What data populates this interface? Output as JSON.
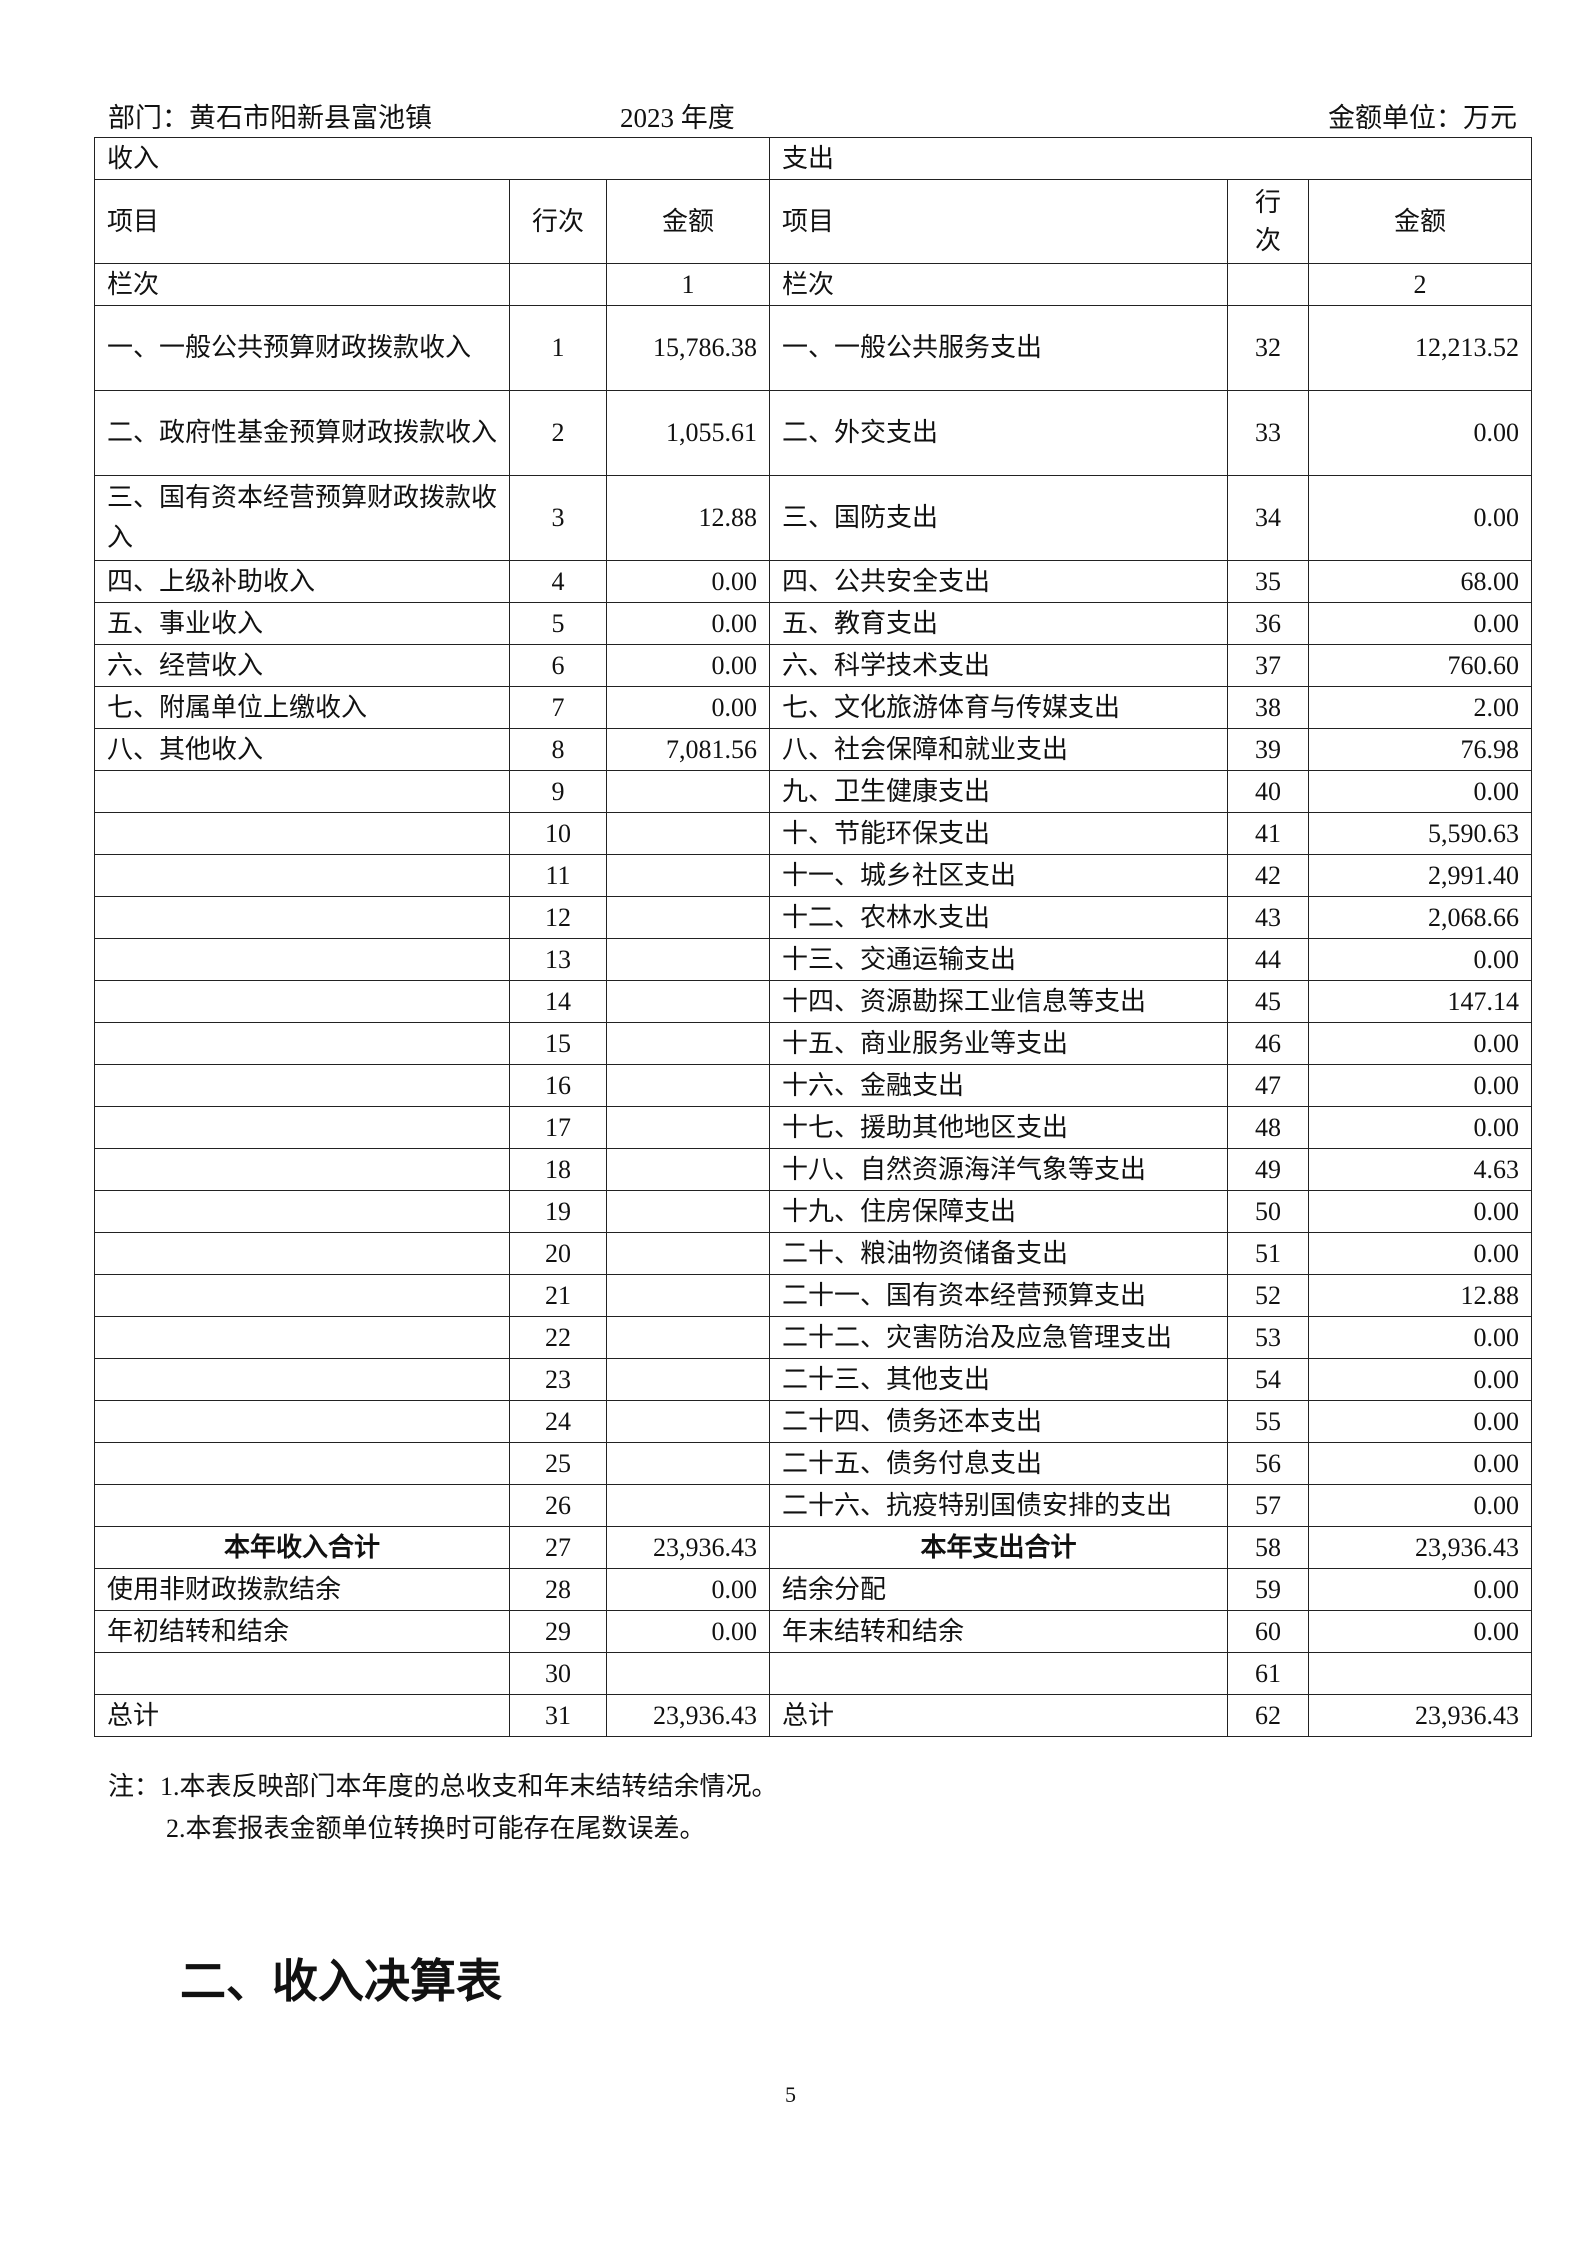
{
  "header": {
    "department": "部门：黄石市阳新县富池镇",
    "year": "2023 年度",
    "unit": "金额单位：万元"
  },
  "table": {
    "section_income": "收入",
    "section_expense": "支出",
    "col_item": "项目",
    "col_line": "行次",
    "col_line_v": "行\n次",
    "col_amount": "金额",
    "col_index_label": "栏次",
    "col_index_1": "1",
    "col_index_2": "2",
    "rows": [
      {
        "in_item": "一、一般公共预算财政拨款收入",
        "in_no": "1",
        "in_amt": "15,786.38",
        "ex_item": "一、一般公共服务支出",
        "ex_no": "32",
        "ex_amt": "12,213.52"
      },
      {
        "in_item": "二、政府性基金预算财政拨款收入",
        "in_no": "2",
        "in_amt": "1,055.61",
        "ex_item": "二、外交支出",
        "ex_no": "33",
        "ex_amt": "0.00"
      },
      {
        "in_item": "三、国有资本经营预算财政拨款收入",
        "in_no": "3",
        "in_amt": "12.88",
        "ex_item": "三、国防支出",
        "ex_no": "34",
        "ex_amt": "0.00"
      },
      {
        "in_item": "四、上级补助收入",
        "in_no": "4",
        "in_amt": "0.00",
        "ex_item": "四、公共安全支出",
        "ex_no": "35",
        "ex_amt": "68.00"
      },
      {
        "in_item": "五、事业收入",
        "in_no": "5",
        "in_amt": "0.00",
        "ex_item": "五、教育支出",
        "ex_no": "36",
        "ex_amt": "0.00"
      },
      {
        "in_item": "六、经营收入",
        "in_no": "6",
        "in_amt": "0.00",
        "ex_item": "六、科学技术支出",
        "ex_no": "37",
        "ex_amt": "760.60"
      },
      {
        "in_item": "七、附属单位上缴收入",
        "in_no": "7",
        "in_amt": "0.00",
        "ex_item": "七、文化旅游体育与传媒支出",
        "ex_no": "38",
        "ex_amt": "2.00"
      },
      {
        "in_item": "八、其他收入",
        "in_no": "8",
        "in_amt": "7,081.56",
        "ex_item": "八、社会保障和就业支出",
        "ex_no": "39",
        "ex_amt": "76.98"
      },
      {
        "in_item": "",
        "in_no": "9",
        "in_amt": "",
        "ex_item": "九、卫生健康支出",
        "ex_no": "40",
        "ex_amt": "0.00"
      },
      {
        "in_item": "",
        "in_no": "10",
        "in_amt": "",
        "ex_item": "十、节能环保支出",
        "ex_no": "41",
        "ex_amt": "5,590.63"
      },
      {
        "in_item": "",
        "in_no": "11",
        "in_amt": "",
        "ex_item": "十一、城乡社区支出",
        "ex_no": "42",
        "ex_amt": "2,991.40"
      },
      {
        "in_item": "",
        "in_no": "12",
        "in_amt": "",
        "ex_item": "十二、农林水支出",
        "ex_no": "43",
        "ex_amt": "2,068.66"
      },
      {
        "in_item": "",
        "in_no": "13",
        "in_amt": "",
        "ex_item": "十三、交通运输支出",
        "ex_no": "44",
        "ex_amt": "0.00"
      },
      {
        "in_item": "",
        "in_no": "14",
        "in_amt": "",
        "ex_item": "十四、资源勘探工业信息等支出",
        "ex_no": "45",
        "ex_amt": "147.14"
      },
      {
        "in_item": "",
        "in_no": "15",
        "in_amt": "",
        "ex_item": "十五、商业服务业等支出",
        "ex_no": "46",
        "ex_amt": "0.00"
      },
      {
        "in_item": "",
        "in_no": "16",
        "in_amt": "",
        "ex_item": "十六、金融支出",
        "ex_no": "47",
        "ex_amt": "0.00"
      },
      {
        "in_item": "",
        "in_no": "17",
        "in_amt": "",
        "ex_item": "十七、援助其他地区支出",
        "ex_no": "48",
        "ex_amt": "0.00"
      },
      {
        "in_item": "",
        "in_no": "18",
        "in_amt": "",
        "ex_item": "十八、自然资源海洋气象等支出",
        "ex_no": "49",
        "ex_amt": "4.63"
      },
      {
        "in_item": "",
        "in_no": "19",
        "in_amt": "",
        "ex_item": "十九、住房保障支出",
        "ex_no": "50",
        "ex_amt": "0.00"
      },
      {
        "in_item": "",
        "in_no": "20",
        "in_amt": "",
        "ex_item": "二十、粮油物资储备支出",
        "ex_no": "51",
        "ex_amt": "0.00"
      },
      {
        "in_item": "",
        "in_no": "21",
        "in_amt": "",
        "ex_item": "二十一、国有资本经营预算支出",
        "ex_no": "52",
        "ex_amt": "12.88"
      },
      {
        "in_item": "",
        "in_no": "22",
        "in_amt": "",
        "ex_item": "二十二、灾害防治及应急管理支出",
        "ex_no": "53",
        "ex_amt": "0.00"
      },
      {
        "in_item": "",
        "in_no": "23",
        "in_amt": "",
        "ex_item": "二十三、其他支出",
        "ex_no": "54",
        "ex_amt": "0.00"
      },
      {
        "in_item": "",
        "in_no": "24",
        "in_amt": "",
        "ex_item": "二十四、债务还本支出",
        "ex_no": "55",
        "ex_amt": "0.00"
      },
      {
        "in_item": "",
        "in_no": "25",
        "in_amt": "",
        "ex_item": "二十五、债务付息支出",
        "ex_no": "56",
        "ex_amt": "0.00"
      },
      {
        "in_item": "",
        "in_no": "26",
        "in_amt": "",
        "ex_item": "二十六、抗疫特别国债安排的支出",
        "ex_no": "57",
        "ex_amt": "0.00"
      },
      {
        "in_item": "本年收入合计",
        "in_no": "27",
        "in_amt": "23,936.43",
        "ex_item": "本年支出合计",
        "ex_no": "58",
        "ex_amt": "23,936.43"
      },
      {
        "in_item": "使用非财政拨款结余",
        "in_no": "28",
        "in_amt": "0.00",
        "ex_item": "结余分配",
        "ex_no": "59",
        "ex_amt": "0.00"
      },
      {
        "in_item": "年初结转和结余",
        "in_no": "29",
        "in_amt": "0.00",
        "ex_item": "年末结转和结余",
        "ex_no": "60",
        "ex_amt": "0.00"
      },
      {
        "in_item": "",
        "in_no": "30",
        "in_amt": "",
        "ex_item": "",
        "ex_no": "61",
        "ex_amt": ""
      },
      {
        "in_item": "总计",
        "in_no": "31",
        "in_amt": "23,936.43",
        "ex_item": "总计",
        "ex_no": "62",
        "ex_amt": "23,936.43"
      }
    ]
  },
  "notes": [
    "注：1.本表反映部门本年度的总收支和年末结转结余情况。",
    "2.本套报表金额单位转换时可能存在尾数误差。"
  ],
  "section_heading": "二、收入决算表",
  "page_number": "5"
}
